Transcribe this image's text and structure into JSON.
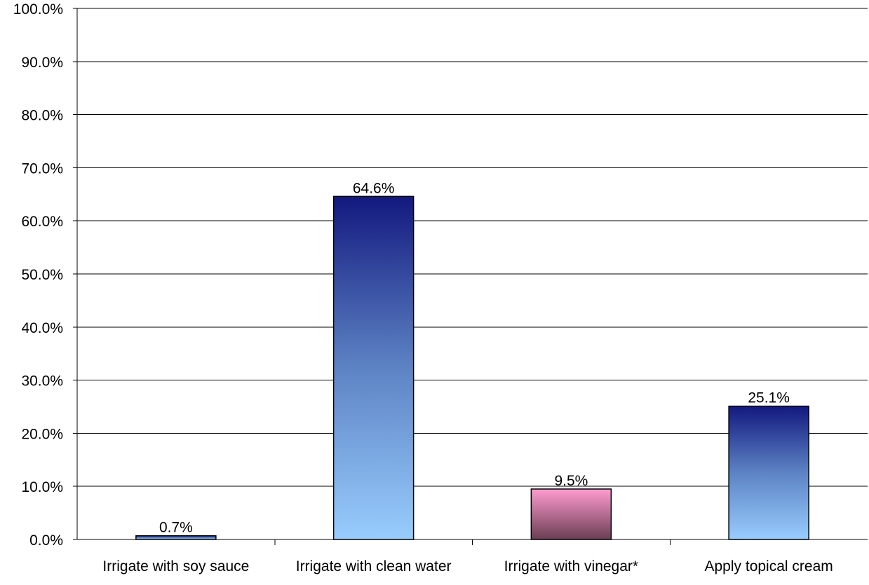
{
  "chart_data": {
    "type": "bar",
    "title": "",
    "xlabel": "",
    "ylabel": "",
    "categories": [
      "Irrigate with soy sauce",
      "Irrigate with clean water",
      "Irrigate with vinegar*",
      "Apply topical cream"
    ],
    "values": [
      0.7,
      64.6,
      9.5,
      25.1
    ],
    "value_labels": [
      "0.7%",
      "64.6%",
      "9.5%",
      "25.1%"
    ],
    "bar_styles": [
      "blue-gradient",
      "blue-gradient",
      "pink-gradient",
      "blue-gradient"
    ],
    "ylim": [
      0,
      100
    ],
    "yticks": [
      "0.0%",
      "10.0%",
      "20.0%",
      "30.0%",
      "40.0%",
      "50.0%",
      "60.0%",
      "70.0%",
      "80.0%",
      "90.0%",
      "100.0%"
    ],
    "grid": true,
    "legend": "none"
  },
  "colors": {
    "blue_top": "#13197f",
    "blue_mid": "#5d83c4",
    "blue_bottom": "#98ccfe",
    "pink_top": "#ff9bd0",
    "pink_bottom": "#6a3e53",
    "gridline": "#000000",
    "bar_outline": "#000000"
  }
}
